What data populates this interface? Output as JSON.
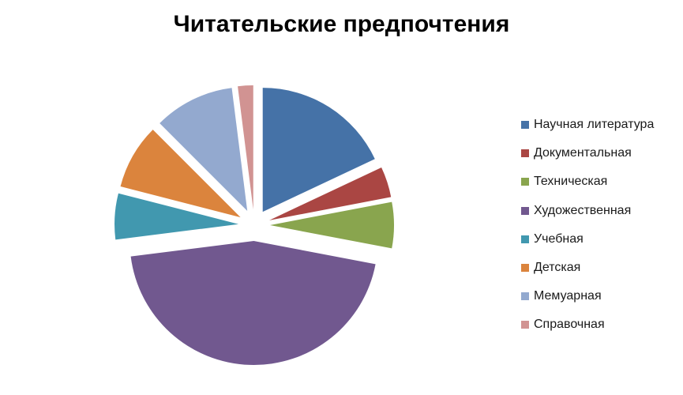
{
  "chart_data": {
    "type": "pie",
    "title": "Читательские предпочтения",
    "exploded": true,
    "legend_position": "right",
    "slices": [
      {
        "name": "Научная литература",
        "value": 18,
        "color": "#4572A7"
      },
      {
        "name": "Документальная",
        "value": 4,
        "color": "#AA4643"
      },
      {
        "name": "Техническая",
        "value": 6,
        "color": "#89A54E"
      },
      {
        "name": "Художественная",
        "value": 45,
        "color": "#71588F"
      },
      {
        "name": "Учебная",
        "value": 6,
        "color": "#4198AF"
      },
      {
        "name": "Детская",
        "value": 8.5,
        "color": "#DB843D"
      },
      {
        "name": "Мемуарная",
        "value": 10.5,
        "color": "#93A9CF"
      },
      {
        "name": "Справочная",
        "value": 2,
        "color": "#D19392"
      }
    ]
  }
}
